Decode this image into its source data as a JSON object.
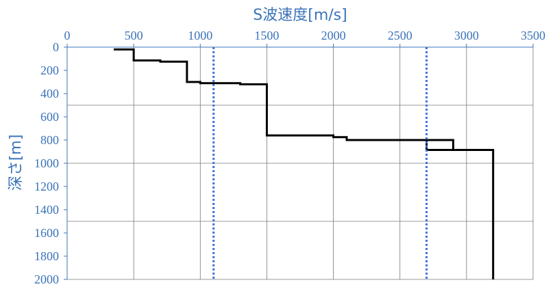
{
  "chart_data": {
    "type": "line",
    "xlabel": "S波速度[m/s]",
    "ylabel": "深さ[m]",
    "xlim": [
      0,
      3500
    ],
    "ylim": [
      0,
      2000
    ],
    "y_inverted": true,
    "x_axis_position": "top",
    "x_ticks": [
      "0",
      "500",
      "1000",
      "1500",
      "2000",
      "2500",
      "3000",
      "3500"
    ],
    "y_ticks": [
      "0",
      "200",
      "400",
      "600",
      "800",
      "1000",
      "1200",
      "1400",
      "1600",
      "1800",
      "2000"
    ],
    "grid": "vertical lines every 500 m/s, horizontal lines at 500 m intervals",
    "series": [
      {
        "line_color": "#000000",
        "style": "solid",
        "points": [
          [
            350,
            20
          ],
          [
            500,
            20
          ],
          [
            500,
            115
          ],
          [
            700,
            115
          ],
          [
            700,
            125
          ],
          [
            900,
            125
          ],
          [
            900,
            300
          ],
          [
            1000,
            300
          ],
          [
            1000,
            310
          ],
          [
            1300,
            310
          ],
          [
            1300,
            320
          ],
          [
            1500,
            320
          ],
          [
            1500,
            760
          ],
          [
            2000,
            760
          ],
          [
            2000,
            775
          ],
          [
            2100,
            775
          ],
          [
            2100,
            800
          ],
          [
            2900,
            800
          ],
          [
            2900,
            885
          ],
          [
            3200,
            885
          ],
          [
            3200,
            2000
          ]
        ]
      },
      {
        "line_color": "#000000",
        "style": "solid",
        "points": [
          [
            2700,
            800
          ],
          [
            2700,
            885
          ],
          [
            2900,
            885
          ]
        ]
      },
      {
        "line_color": "#3a73d8",
        "style": "dotted",
        "points": [
          [
            1100,
            0
          ],
          [
            1100,
            2000
          ]
        ]
      },
      {
        "line_color": "#3a73d8",
        "style": "dotted",
        "points": [
          [
            2700,
            0
          ],
          [
            2700,
            2000
          ]
        ]
      }
    ]
  }
}
